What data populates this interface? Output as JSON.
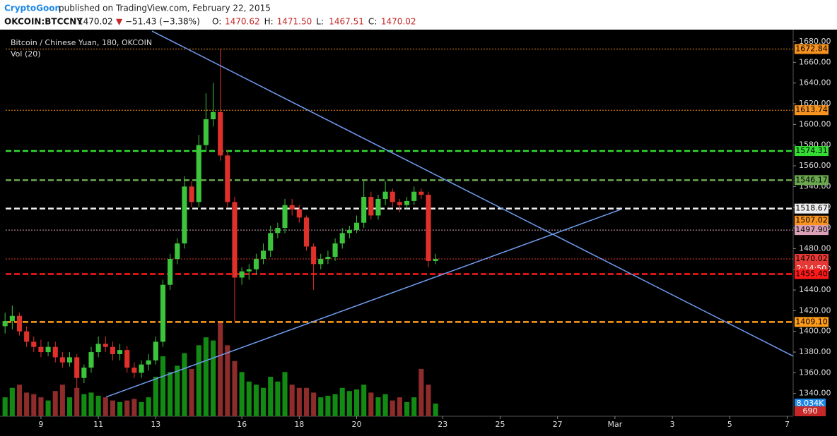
{
  "header": {
    "author": "CryptoGoon",
    "published": "published on TradingView.com, February 22, 2015",
    "symbol": "OKCOIN:BTCCNY",
    "last": "1470.02",
    "arrow": "▼",
    "change": "−51.43 (−3.38%)",
    "ohlc": [
      {
        "key": "O:",
        "value": "1470.62"
      },
      {
        "key": "H:",
        "value": "1471.50"
      },
      {
        "key": "L:",
        "value": "1467.51"
      },
      {
        "key": "C:",
        "value": "1470.02"
      }
    ]
  },
  "chart_data": {
    "type": "candlestick",
    "title": "Bitcoin / Chinese Yuan, 180, OKCOIN",
    "volume_title": "Vol (20)",
    "countdown": "2:14:50",
    "up_color": "#3cc43c",
    "down_color": "#e0302a",
    "volume_up_color": "#138a13",
    "volume_down_color": "#8e2b2b",
    "trendline_color": "#6f9cf0",
    "x": [
      7.75,
      8,
      8.25,
      8.5,
      8.75,
      9,
      9.25,
      9.5,
      9.75,
      10,
      10.25,
      10.5,
      10.75,
      11,
      11.25,
      11.5,
      11.75,
      12,
      12.25,
      12.5,
      12.75,
      13,
      13.25,
      13.5,
      13.75,
      14,
      14.25,
      14.5,
      14.75,
      15,
      15.25,
      15.5,
      15.75,
      16,
      16.25,
      16.5,
      16.75,
      17,
      17.25,
      17.5,
      17.75,
      18,
      18.25,
      18.5,
      18.75,
      19,
      19.25,
      19.5,
      19.75,
      20,
      20.25,
      20.5,
      20.75,
      21,
      21.25,
      21.5,
      21.75,
      22,
      22.25,
      22.5,
      22.75
    ],
    "open": [
      1405,
      1410,
      1415,
      1400,
      1390,
      1385,
      1380,
      1385,
      1375,
      1370,
      1375,
      1355,
      1365,
      1380,
      1388,
      1385,
      1378,
      1382,
      1365,
      1360,
      1368,
      1372,
      1390,
      1445,
      1470,
      1485,
      1540,
      1525,
      1580,
      1605,
      1612,
      1570,
      1525,
      1452,
      1458,
      1460,
      1470,
      1478,
      1495,
      1500,
      1522,
      1518,
      1510,
      1482,
      1465,
      1470,
      1472,
      1485,
      1495,
      1498,
      1505,
      1530,
      1512,
      1528,
      1535,
      1525,
      1522,
      1526,
      1535,
      1532,
      1468
    ],
    "high": [
      1418,
      1425,
      1418,
      1405,
      1395,
      1392,
      1390,
      1390,
      1380,
      1380,
      1378,
      1368,
      1385,
      1395,
      1395,
      1390,
      1388,
      1386,
      1370,
      1372,
      1378,
      1395,
      1450,
      1475,
      1490,
      1550,
      1545,
      1590,
      1630,
      1640,
      1672.84,
      1575,
      1530,
      1462,
      1465,
      1475,
      1485,
      1502,
      1505,
      1528,
      1528,
      1522,
      1512,
      1485,
      1475,
      1478,
      1490,
      1500,
      1502,
      1512,
      1545,
      1535,
      1532,
      1545,
      1538,
      1528,
      1530,
      1540,
      1538,
      1535,
      1475
    ],
    "low": [
      1398,
      1402,
      1396,
      1385,
      1380,
      1375,
      1376,
      1370,
      1365,
      1366,
      1345,
      1350,
      1360,
      1375,
      1380,
      1372,
      1372,
      1360,
      1355,
      1355,
      1362,
      1368,
      1385,
      1440,
      1465,
      1480,
      1520,
      1520,
      1575,
      1598,
      1565,
      1520,
      1410,
      1445,
      1450,
      1455,
      1465,
      1472,
      1490,
      1495,
      1512,
      1505,
      1478,
      1440,
      1460,
      1465,
      1468,
      1480,
      1490,
      1495,
      1500,
      1508,
      1508,
      1522,
      1520,
      1515,
      1518,
      1522,
      1528,
      1462,
      1465
    ],
    "close": [
      1410,
      1415,
      1400,
      1390,
      1385,
      1380,
      1385,
      1375,
      1370,
      1375,
      1355,
      1365,
      1380,
      1388,
      1385,
      1378,
      1382,
      1365,
      1360,
      1368,
      1372,
      1390,
      1445,
      1470,
      1485,
      1540,
      1525,
      1580,
      1605,
      1612,
      1570,
      1525,
      1452,
      1458,
      1460,
      1470,
      1478,
      1495,
      1500,
      1522,
      1518,
      1510,
      1482,
      1465,
      1470,
      1472,
      1485,
      1495,
      1498,
      1505,
      1530,
      1512,
      1528,
      1535,
      1525,
      1522,
      1526,
      1535,
      1532,
      1468,
      1470.02
    ],
    "volume": [
      12000,
      18000,
      20000,
      15000,
      14000,
      12000,
      10000,
      16000,
      20000,
      12000,
      18000,
      14000,
      15000,
      13000,
      12000,
      10000,
      9000,
      10000,
      11000,
      9000,
      12000,
      25000,
      38000,
      28000,
      32000,
      40000,
      30000,
      45000,
      50000,
      48000,
      60000,
      45000,
      35000,
      28000,
      22000,
      20000,
      18000,
      25000,
      22000,
      28000,
      20000,
      18000,
      18000,
      15000,
      12000,
      13000,
      14000,
      18000,
      16000,
      17000,
      20000,
      15000,
      12000,
      14000,
      10000,
      12000,
      9000,
      12000,
      30000,
      20000,
      8034
    ],
    "volume_markers": [
      {
        "value": 8034,
        "label": "8.034K",
        "color": "#1e88e5"
      },
      {
        "value": 690,
        "label": "690",
        "color": "#c62828"
      }
    ],
    "xlim": [
      7.77,
      35.21
    ],
    "ylim": [
      1318,
      1691.6
    ],
    "vlim": [
      0,
      245000
    ],
    "xticks": [
      9,
      11,
      13,
      16,
      18,
      20,
      23,
      25,
      27,
      {
        "value": 29,
        "label": "Mar"
      },
      {
        "value": 31,
        "label": "3"
      },
      {
        "value": 33,
        "label": "5"
      },
      {
        "value": 35,
        "label": "7"
      }
    ],
    "yticks": [
      {
        "value": 1340,
        "label": "1340.00"
      },
      {
        "value": 1360,
        "label": "1360.00"
      },
      {
        "value": 1380,
        "label": "1380.00"
      },
      {
        "value": 1400,
        "label": "1400.00"
      },
      {
        "value": 1420,
        "label": "1420.00"
      },
      {
        "value": 1440,
        "label": "1440.00"
      },
      {
        "value": 1460,
        "label": "1460.00"
      },
      {
        "value": 1480,
        "label": "1480.00"
      },
      {
        "value": 1500,
        "label": "1500.00"
      },
      {
        "value": 1520,
        "label": "1520.00"
      },
      {
        "value": 1540,
        "label": "1540.00"
      },
      {
        "value": 1560,
        "label": "1560.00"
      },
      {
        "value": 1580,
        "label": "1580.00"
      },
      {
        "value": 1600,
        "label": "1600.00"
      },
      {
        "value": 1620,
        "label": "1620.00"
      },
      {
        "value": 1640,
        "label": "1640.00"
      },
      {
        "value": 1660,
        "label": "1660.00"
      },
      {
        "value": 1680,
        "label": "1680.00"
      }
    ],
    "levels": [
      {
        "value": 1672.84,
        "label": "1672.84",
        "color": "#f7931e",
        "style": "dotted"
      },
      {
        "value": 1613.74,
        "label": "1613.74",
        "color": "#f7931e",
        "style": "dotted"
      },
      {
        "value": 1574.31,
        "label": "1574.31",
        "color": "#33dd33",
        "style": "dashed"
      },
      {
        "value": 1546.17,
        "label": "1546.17",
        "color": "#6aa84f",
        "style": "dashed"
      },
      {
        "value": 1518.67,
        "label": "1518.67",
        "color": "#eeeeee",
        "style": "dashed"
      },
      {
        "value": 1507.02,
        "label": "1507.02",
        "color": "#f7931e",
        "style": "none"
      },
      {
        "value": 1497.9,
        "label": "1497.90",
        "color": "#d9a0b8",
        "style": "dotted"
      },
      {
        "value": 1470.02,
        "label": "1470.02",
        "color": "#e53935",
        "style": "dotted"
      },
      {
        "value": 1455.4,
        "label": "1455.40",
        "color": "#ff1a1a",
        "style": "dashed"
      },
      {
        "value": 1409.1,
        "label": "1409.10",
        "color": "#ff9d1a",
        "style": "dashed"
      }
    ],
    "trendlines": [
      {
        "x": [
          12.87,
          35.21
        ],
        "y": [
          1690.2,
          1376.1
        ]
      },
      {
        "x": [
          11.27,
          29.2
        ],
        "y": [
          1336.6,
          1517.8
        ]
      }
    ]
  }
}
